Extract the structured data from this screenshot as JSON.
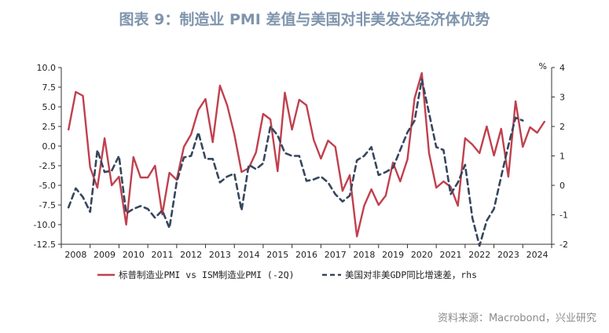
{
  "title": "图表 9：制造业 PMI 差值与美国对非美发达经济体优势",
  "source": "资料来源：Macrobond，兴业研究",
  "chart_data": {
    "type": "line",
    "title": "图表 9：制造业 PMI 差值与美国对非美发达经济体优势",
    "left_axis": {
      "ylim": [
        -12.5,
        10.0
      ],
      "ticks": [
        "10.0",
        "7.5",
        "5.0",
        "2.5",
        "0.0",
        "-2.5",
        "-5.0",
        "-7.5",
        "-10.0",
        "-12.5"
      ]
    },
    "right_axis": {
      "unit": "%",
      "ylim": [
        -2,
        4
      ],
      "ticks": [
        "4",
        "3",
        "2",
        "1",
        "0",
        "-1",
        "-2"
      ]
    },
    "x_axis": {
      "xlim": [
        2007.75,
        2024.75
      ],
      "years": [
        "2008",
        "2009",
        "2010",
        "2011",
        "2012",
        "2013",
        "2014",
        "2015",
        "2016",
        "2017",
        "2018",
        "2019",
        "2020",
        "2021",
        "2022",
        "2023",
        "2024"
      ]
    },
    "grid": false,
    "legend_position": "bottom",
    "series": [
      {
        "name": "标普制造业PMI vs ISM制造业PMI (-2Q)",
        "axis": "left",
        "color": "#c0404e",
        "style": "solid",
        "points": [
          [
            2008.0,
            2.1
          ],
          [
            2008.25,
            6.9
          ],
          [
            2008.5,
            6.4
          ],
          [
            2008.75,
            -2.7
          ],
          [
            2009.0,
            -5.3
          ],
          [
            2009.25,
            1.0
          ],
          [
            2009.5,
            -5.0
          ],
          [
            2009.75,
            -3.9
          ],
          [
            2010.0,
            -10.0
          ],
          [
            2010.25,
            -1.4
          ],
          [
            2010.5,
            -4.0
          ],
          [
            2010.75,
            -4.0
          ],
          [
            2011.0,
            -2.5
          ],
          [
            2011.25,
            -8.7
          ],
          [
            2011.5,
            -3.4
          ],
          [
            2011.75,
            -4.3
          ],
          [
            2012.0,
            -0.1
          ],
          [
            2012.25,
            1.5
          ],
          [
            2012.5,
            4.6
          ],
          [
            2012.75,
            6.0
          ],
          [
            2013.0,
            0.5
          ],
          [
            2013.25,
            7.7
          ],
          [
            2013.5,
            5.2
          ],
          [
            2013.75,
            1.5
          ],
          [
            2014.0,
            -3.3
          ],
          [
            2014.25,
            -2.8
          ],
          [
            2014.5,
            -0.8
          ],
          [
            2014.75,
            4.1
          ],
          [
            2015.0,
            3.4
          ],
          [
            2015.25,
            -3.2
          ],
          [
            2015.5,
            6.8
          ],
          [
            2015.75,
            2.1
          ],
          [
            2016.0,
            5.9
          ],
          [
            2016.25,
            5.2
          ],
          [
            2016.5,
            0.8
          ],
          [
            2016.75,
            -1.6
          ],
          [
            2017.0,
            0.7
          ],
          [
            2017.25,
            -0.1
          ],
          [
            2017.5,
            -5.7
          ],
          [
            2017.75,
            -3.7
          ],
          [
            2018.0,
            -11.5
          ],
          [
            2018.25,
            -7.6
          ],
          [
            2018.5,
            -5.5
          ],
          [
            2018.75,
            -7.5
          ],
          [
            2019.0,
            -6.3
          ],
          [
            2019.25,
            -2.1
          ],
          [
            2019.5,
            -4.5
          ],
          [
            2019.75,
            -1.7
          ],
          [
            2020.0,
            6.1
          ],
          [
            2020.25,
            9.3
          ],
          [
            2020.5,
            -0.9
          ],
          [
            2020.75,
            -5.3
          ],
          [
            2021.0,
            -4.5
          ],
          [
            2021.25,
            -5.2
          ],
          [
            2021.5,
            -7.6
          ],
          [
            2021.75,
            1.0
          ],
          [
            2022.0,
            0.2
          ],
          [
            2022.25,
            -0.9
          ],
          [
            2022.5,
            2.5
          ],
          [
            2022.75,
            -1.2
          ],
          [
            2023.0,
            2.2
          ],
          [
            2023.25,
            -3.9
          ],
          [
            2023.5,
            5.7
          ],
          [
            2023.75,
            -0.1
          ],
          [
            2024.0,
            2.4
          ],
          [
            2024.25,
            1.7
          ],
          [
            2024.5,
            3.1
          ]
        ]
      },
      {
        "name": "美国对非美GDP同比增速差，rhs",
        "axis": "right",
        "color": "#36465e",
        "style": "dashed",
        "points": [
          [
            2008.0,
            -0.75
          ],
          [
            2008.25,
            -0.1
          ],
          [
            2008.5,
            -0.4
          ],
          [
            2008.75,
            -0.9
          ],
          [
            2009.0,
            1.2
          ],
          [
            2009.25,
            0.45
          ],
          [
            2009.5,
            0.5
          ],
          [
            2009.75,
            1.0
          ],
          [
            2010.0,
            -0.95
          ],
          [
            2010.25,
            -0.8
          ],
          [
            2010.5,
            -0.7
          ],
          [
            2010.75,
            -0.8
          ],
          [
            2011.0,
            -1.1
          ],
          [
            2011.25,
            -0.85
          ],
          [
            2011.5,
            -1.45
          ],
          [
            2011.75,
            0.1
          ],
          [
            2012.0,
            0.95
          ],
          [
            2012.25,
            1.0
          ],
          [
            2012.5,
            1.8
          ],
          [
            2012.75,
            0.9
          ],
          [
            2013.0,
            0.9
          ],
          [
            2013.25,
            0.1
          ],
          [
            2013.5,
            0.3
          ],
          [
            2013.75,
            0.4
          ],
          [
            2014.0,
            -0.85
          ],
          [
            2014.25,
            0.7
          ],
          [
            2014.5,
            0.55
          ],
          [
            2014.75,
            0.75
          ],
          [
            2015.0,
            2.0
          ],
          [
            2015.25,
            1.7
          ],
          [
            2015.5,
            1.1
          ],
          [
            2015.75,
            1.0
          ],
          [
            2016.0,
            1.0
          ],
          [
            2016.25,
            0.15
          ],
          [
            2016.5,
            0.2
          ],
          [
            2016.75,
            0.3
          ],
          [
            2017.0,
            0.1
          ],
          [
            2017.25,
            -0.3
          ],
          [
            2017.5,
            -0.55
          ],
          [
            2017.75,
            -0.35
          ],
          [
            2018.0,
            0.85
          ],
          [
            2018.25,
            1.0
          ],
          [
            2018.5,
            1.3
          ],
          [
            2018.75,
            0.35
          ],
          [
            2019.0,
            0.45
          ],
          [
            2019.25,
            0.6
          ],
          [
            2019.5,
            1.2
          ],
          [
            2019.75,
            1.8
          ],
          [
            2020.0,
            2.2
          ],
          [
            2020.25,
            3.6
          ],
          [
            2020.5,
            2.45
          ],
          [
            2020.75,
            1.3
          ],
          [
            2021.0,
            1.2
          ],
          [
            2021.25,
            -0.3
          ],
          [
            2021.5,
            0.1
          ],
          [
            2021.75,
            0.7
          ],
          [
            2022.0,
            -1.1
          ],
          [
            2022.25,
            -2.05
          ],
          [
            2022.5,
            -1.2
          ],
          [
            2022.75,
            -0.8
          ],
          [
            2023.0,
            0.3
          ],
          [
            2023.25,
            1.35
          ],
          [
            2023.5,
            2.3
          ],
          [
            2023.75,
            2.2
          ]
        ]
      }
    ]
  }
}
